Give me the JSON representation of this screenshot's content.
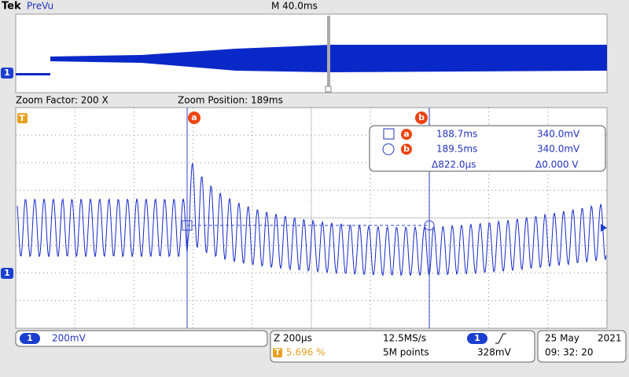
{
  "header": {
    "brand": "Tek",
    "mode": "PreVu",
    "timebase": "M 40.0ms",
    "trigger_icon": "T"
  },
  "zoom": {
    "factor": "Zoom Factor: 200 X",
    "position": "Zoom Position: 189ms"
  },
  "cursors": {
    "a": {
      "label": "a",
      "time": "188.7ms",
      "level": "340.0mV"
    },
    "b": {
      "label": "b",
      "time": "189.5ms",
      "level": "340.0mV"
    },
    "delta_time": "Δ822.0µs",
    "delta_level": "Δ0.000 V"
  },
  "channel": {
    "number": "1",
    "scale": "200mV"
  },
  "acquisition": {
    "zoom_scale": "Z 200µs",
    "sample_rate": "12.5MS/s",
    "trigger_position": "5.696 %",
    "record_length": "5M points",
    "trigger_channel": "1",
    "trigger_level": "328mV"
  },
  "datetime": {
    "day": "25 May",
    "year": "2021",
    "time": "09: 32: 20"
  }
}
